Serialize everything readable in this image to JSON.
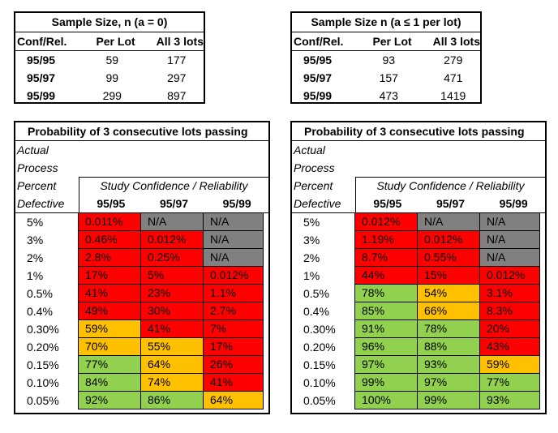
{
  "sample_table_a": {
    "title": "Sample Size, n (a = 0)",
    "headers": [
      "Conf/Rel.",
      "Per Lot",
      "All 3 lots"
    ],
    "rows": [
      {
        "cr": "95/95",
        "per": "59",
        "all": "177"
      },
      {
        "cr": "95/97",
        "per": "99",
        "all": "297"
      },
      {
        "cr": "95/99",
        "per": "299",
        "all": "897"
      }
    ]
  },
  "sample_table_b": {
    "title": "Sample Size n (a ≤ 1 per lot)",
    "headers": [
      "Conf/Rel.",
      "Per Lot",
      "All 3 lots"
    ],
    "rows": [
      {
        "cr": "95/95",
        "per": "93",
        "all": "279"
      },
      {
        "cr": "95/97",
        "per": "157",
        "all": "471"
      },
      {
        "cr": "95/99",
        "per": "473",
        "all": "1419"
      }
    ]
  },
  "colors": {
    "red": "#ff0000",
    "orange": "#ffc000",
    "green": "#92d050",
    "gray": "#808080"
  },
  "prob_left": {
    "title": "Probability of 3 consecutive lots passing",
    "left_header": [
      "Actual",
      "Process",
      "Percent",
      "Defective"
    ],
    "span_header": "Study Confidence / Reliability",
    "columns": [
      "95/95",
      "95/97",
      "95/99"
    ],
    "rows": [
      {
        "d": "5%",
        "v": [
          "0.011%",
          "N/A",
          "N/A"
        ],
        "c": [
          "red",
          "gray",
          "gray"
        ]
      },
      {
        "d": "3%",
        "v": [
          "0.46%",
          "0.012%",
          "N/A"
        ],
        "c": [
          "red",
          "red",
          "gray"
        ]
      },
      {
        "d": "2%",
        "v": [
          "2.8%",
          "0.25%",
          "N/A"
        ],
        "c": [
          "red",
          "red",
          "gray"
        ]
      },
      {
        "d": "1%",
        "v": [
          "17%",
          "5%",
          "0.012%"
        ],
        "c": [
          "red",
          "red",
          "red"
        ]
      },
      {
        "d": "0.5%",
        "v": [
          "41%",
          "23%",
          "1.1%"
        ],
        "c": [
          "red",
          "red",
          "red"
        ]
      },
      {
        "d": "0.4%",
        "v": [
          "49%",
          "30%",
          "2.7%"
        ],
        "c": [
          "red",
          "red",
          "red"
        ]
      },
      {
        "d": "0.30%",
        "v": [
          "59%",
          "41%",
          "7%"
        ],
        "c": [
          "orange",
          "red",
          "red"
        ]
      },
      {
        "d": "0.20%",
        "v": [
          "70%",
          "55%",
          "17%"
        ],
        "c": [
          "orange",
          "orange",
          "red"
        ]
      },
      {
        "d": "0.15%",
        "v": [
          "77%",
          "64%",
          "26%"
        ],
        "c": [
          "green",
          "orange",
          "red"
        ]
      },
      {
        "d": "0.10%",
        "v": [
          "84%",
          "74%",
          "41%"
        ],
        "c": [
          "green",
          "orange",
          "red"
        ]
      },
      {
        "d": "0.05%",
        "v": [
          "92%",
          "86%",
          "64%"
        ],
        "c": [
          "green",
          "green",
          "orange"
        ]
      }
    ]
  },
  "prob_right": {
    "title": "Probability of 3 consecutive lots passing",
    "left_header": [
      "Actual",
      "Process",
      "Percent",
      "Defective"
    ],
    "span_header": "Study Confidence / Reliability",
    "columns": [
      "95/95",
      "95/97",
      "95/99"
    ],
    "rows": [
      {
        "d": "5%",
        "v": [
          "0.012%",
          "N/A",
          "N/A"
        ],
        "c": [
          "red",
          "gray",
          "gray"
        ]
      },
      {
        "d": "3%",
        "v": [
          "1.19%",
          "0.012%",
          "N/A"
        ],
        "c": [
          "red",
          "red",
          "gray"
        ]
      },
      {
        "d": "2%",
        "v": [
          "8.7%",
          "0.55%",
          "N/A"
        ],
        "c": [
          "red",
          "red",
          "gray"
        ]
      },
      {
        "d": "1%",
        "v": [
          "44%",
          "15%",
          "0.012%"
        ],
        "c": [
          "red",
          "red",
          "red"
        ]
      },
      {
        "d": "0.5%",
        "v": [
          "78%",
          "54%",
          "3.1%"
        ],
        "c": [
          "green",
          "orange",
          "red"
        ]
      },
      {
        "d": "0.4%",
        "v": [
          "85%",
          "66%",
          "8.3%"
        ],
        "c": [
          "green",
          "orange",
          "red"
        ]
      },
      {
        "d": "0.30%",
        "v": [
          "91%",
          "78%",
          "20%"
        ],
        "c": [
          "green",
          "green",
          "red"
        ]
      },
      {
        "d": "0.20%",
        "v": [
          "96%",
          "88%",
          "43%"
        ],
        "c": [
          "green",
          "green",
          "red"
        ]
      },
      {
        "d": "0.15%",
        "v": [
          "97%",
          "93%",
          "59%"
        ],
        "c": [
          "green",
          "green",
          "orange"
        ]
      },
      {
        "d": "0.10%",
        "v": [
          "99%",
          "97%",
          "77%"
        ],
        "c": [
          "green",
          "green",
          "green"
        ]
      },
      {
        "d": "0.05%",
        "v": [
          "100%",
          "99%",
          "93%"
        ],
        "c": [
          "green",
          "green",
          "green"
        ]
      }
    ]
  }
}
